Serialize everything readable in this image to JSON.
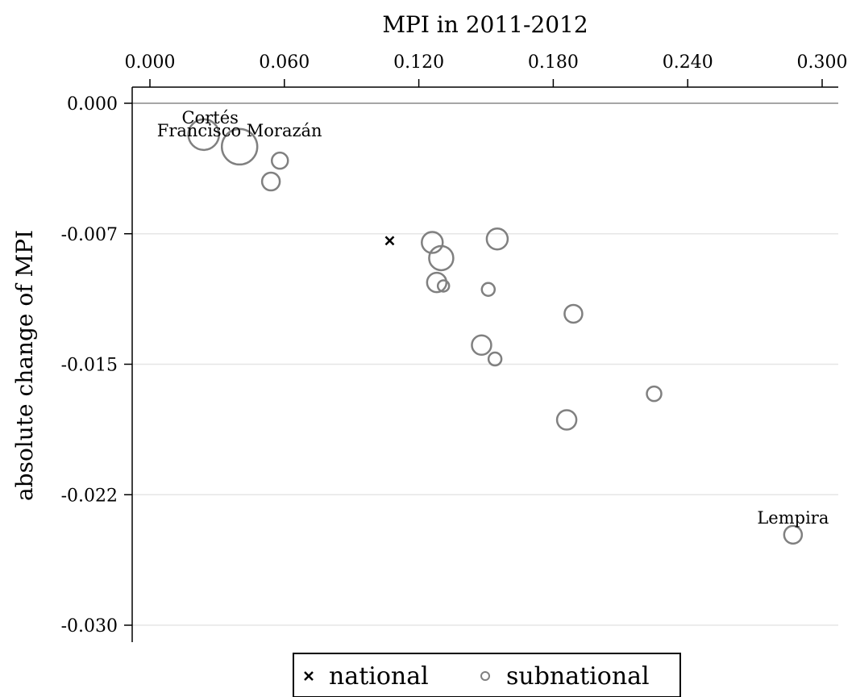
{
  "chart_data": {
    "type": "scatter",
    "title": "",
    "xlabel": "MPI in 2011-2012",
    "ylabel": "absolute change of MPI",
    "xlim": [
      -0.008,
      0.3
    ],
    "ylim": [
      -0.03,
      0.0
    ],
    "x_ticks": [
      "0.000",
      "0.060",
      "0.120",
      "0.180",
      "0.240",
      "0.300"
    ],
    "x_tick_values": [
      0.0,
      0.06,
      0.12,
      0.18,
      0.24,
      0.3
    ],
    "y_ticks": [
      "0.000",
      "-0.007",
      "-0.015",
      "-0.022",
      "-0.030"
    ],
    "y_tick_values": [
      0.0,
      -0.0075,
      -0.015,
      -0.0225,
      -0.03
    ],
    "x_axis_position": "top",
    "grid": "horizontal",
    "zero_line": true,
    "marker_color": "#808080",
    "national_color": "#000000",
    "series": [
      {
        "name": "national",
        "marker": "x",
        "points": [
          {
            "x": 0.107,
            "y": -0.0079
          }
        ]
      },
      {
        "name": "subnational",
        "marker": "circle",
        "points": [
          {
            "x": 0.024,
            "y": -0.0018,
            "size": 19,
            "label": "Cortés"
          },
          {
            "x": 0.04,
            "y": -0.0025,
            "size": 22,
            "label": "Francisco Morazán"
          },
          {
            "x": 0.058,
            "y": -0.0033,
            "size": 10
          },
          {
            "x": 0.054,
            "y": -0.0045,
            "size": 11
          },
          {
            "x": 0.126,
            "y": -0.008,
            "size": 13
          },
          {
            "x": 0.13,
            "y": -0.0089,
            "size": 15
          },
          {
            "x": 0.155,
            "y": -0.0078,
            "size": 13
          },
          {
            "x": 0.128,
            "y": -0.0103,
            "size": 12
          },
          {
            "x": 0.131,
            "y": -0.0105,
            "size": 7
          },
          {
            "x": 0.151,
            "y": -0.0107,
            "size": 8
          },
          {
            "x": 0.189,
            "y": -0.0121,
            "size": 11
          },
          {
            "x": 0.148,
            "y": -0.0139,
            "size": 12
          },
          {
            "x": 0.154,
            "y": -0.0147,
            "size": 8
          },
          {
            "x": 0.225,
            "y": -0.0167,
            "size": 9
          },
          {
            "x": 0.186,
            "y": -0.0182,
            "size": 12
          },
          {
            "x": 0.287,
            "y": -0.0248,
            "size": 11,
            "label": "Lempira"
          }
        ]
      }
    ],
    "legend": {
      "position": "bottom-center",
      "entries": [
        "national",
        "subnational"
      ]
    }
  }
}
